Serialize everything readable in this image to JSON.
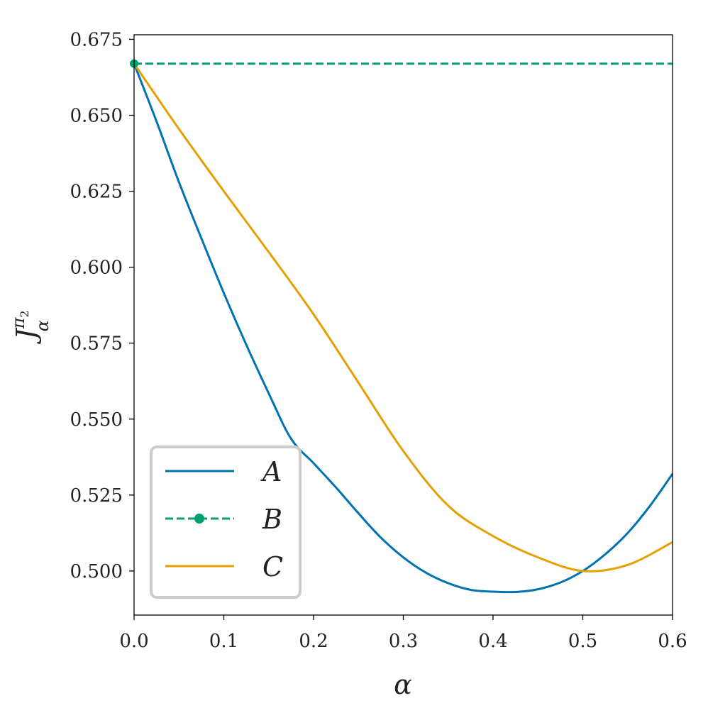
{
  "chart_data": {
    "type": "line",
    "xlabel": "α",
    "ylabel": {
      "main": "J",
      "sub": "α",
      "sup_main": "π",
      "sup_sub": "2"
    },
    "xlim": [
      0.0,
      0.6
    ],
    "ylim": [
      0.4855,
      0.6765
    ],
    "x_ticks": [
      "0.0",
      "0.1",
      "0.2",
      "0.3",
      "0.4",
      "0.5",
      "0.6"
    ],
    "y_ticks": [
      "0.500",
      "0.525",
      "0.550",
      "0.575",
      "0.600",
      "0.625",
      "0.650",
      "0.675"
    ],
    "grid": false,
    "legend_position": "lower-left",
    "series": [
      {
        "name": "A",
        "color": "#0072b2",
        "style": "solid",
        "x": [
          0.0,
          0.025,
          0.05,
          0.075,
          0.1,
          0.125,
          0.15,
          0.175,
          0.2,
          0.225,
          0.25,
          0.275,
          0.3,
          0.325,
          0.35,
          0.375,
          0.4,
          0.425,
          0.45,
          0.475,
          0.5,
          0.525,
          0.55,
          0.575,
          0.6
        ],
        "y": [
          0.667,
          0.648,
          0.628,
          0.6095,
          0.5915,
          0.5745,
          0.5585,
          0.5435,
          0.5355,
          0.5275,
          0.519,
          0.511,
          0.5045,
          0.4995,
          0.496,
          0.4938,
          0.4932,
          0.4931,
          0.494,
          0.4962,
          0.5,
          0.5055,
          0.5125,
          0.5215,
          0.532
        ]
      },
      {
        "name": "B",
        "color": "#009e73",
        "style": "dashed",
        "marker_x": 0.0,
        "x": [
          0.0,
          0.6
        ],
        "y": [
          0.667,
          0.667
        ]
      },
      {
        "name": "C",
        "color": "#e69f00",
        "style": "solid",
        "x": [
          0.0,
          0.05,
          0.1,
          0.15,
          0.2,
          0.25,
          0.3,
          0.35,
          0.4,
          0.45,
          0.5,
          0.55,
          0.6
        ],
        "y": [
          0.667,
          0.6455,
          0.625,
          0.605,
          0.5845,
          0.562,
          0.5395,
          0.5215,
          0.5115,
          0.5045,
          0.5,
          0.502,
          0.5095
        ]
      }
    ]
  }
}
